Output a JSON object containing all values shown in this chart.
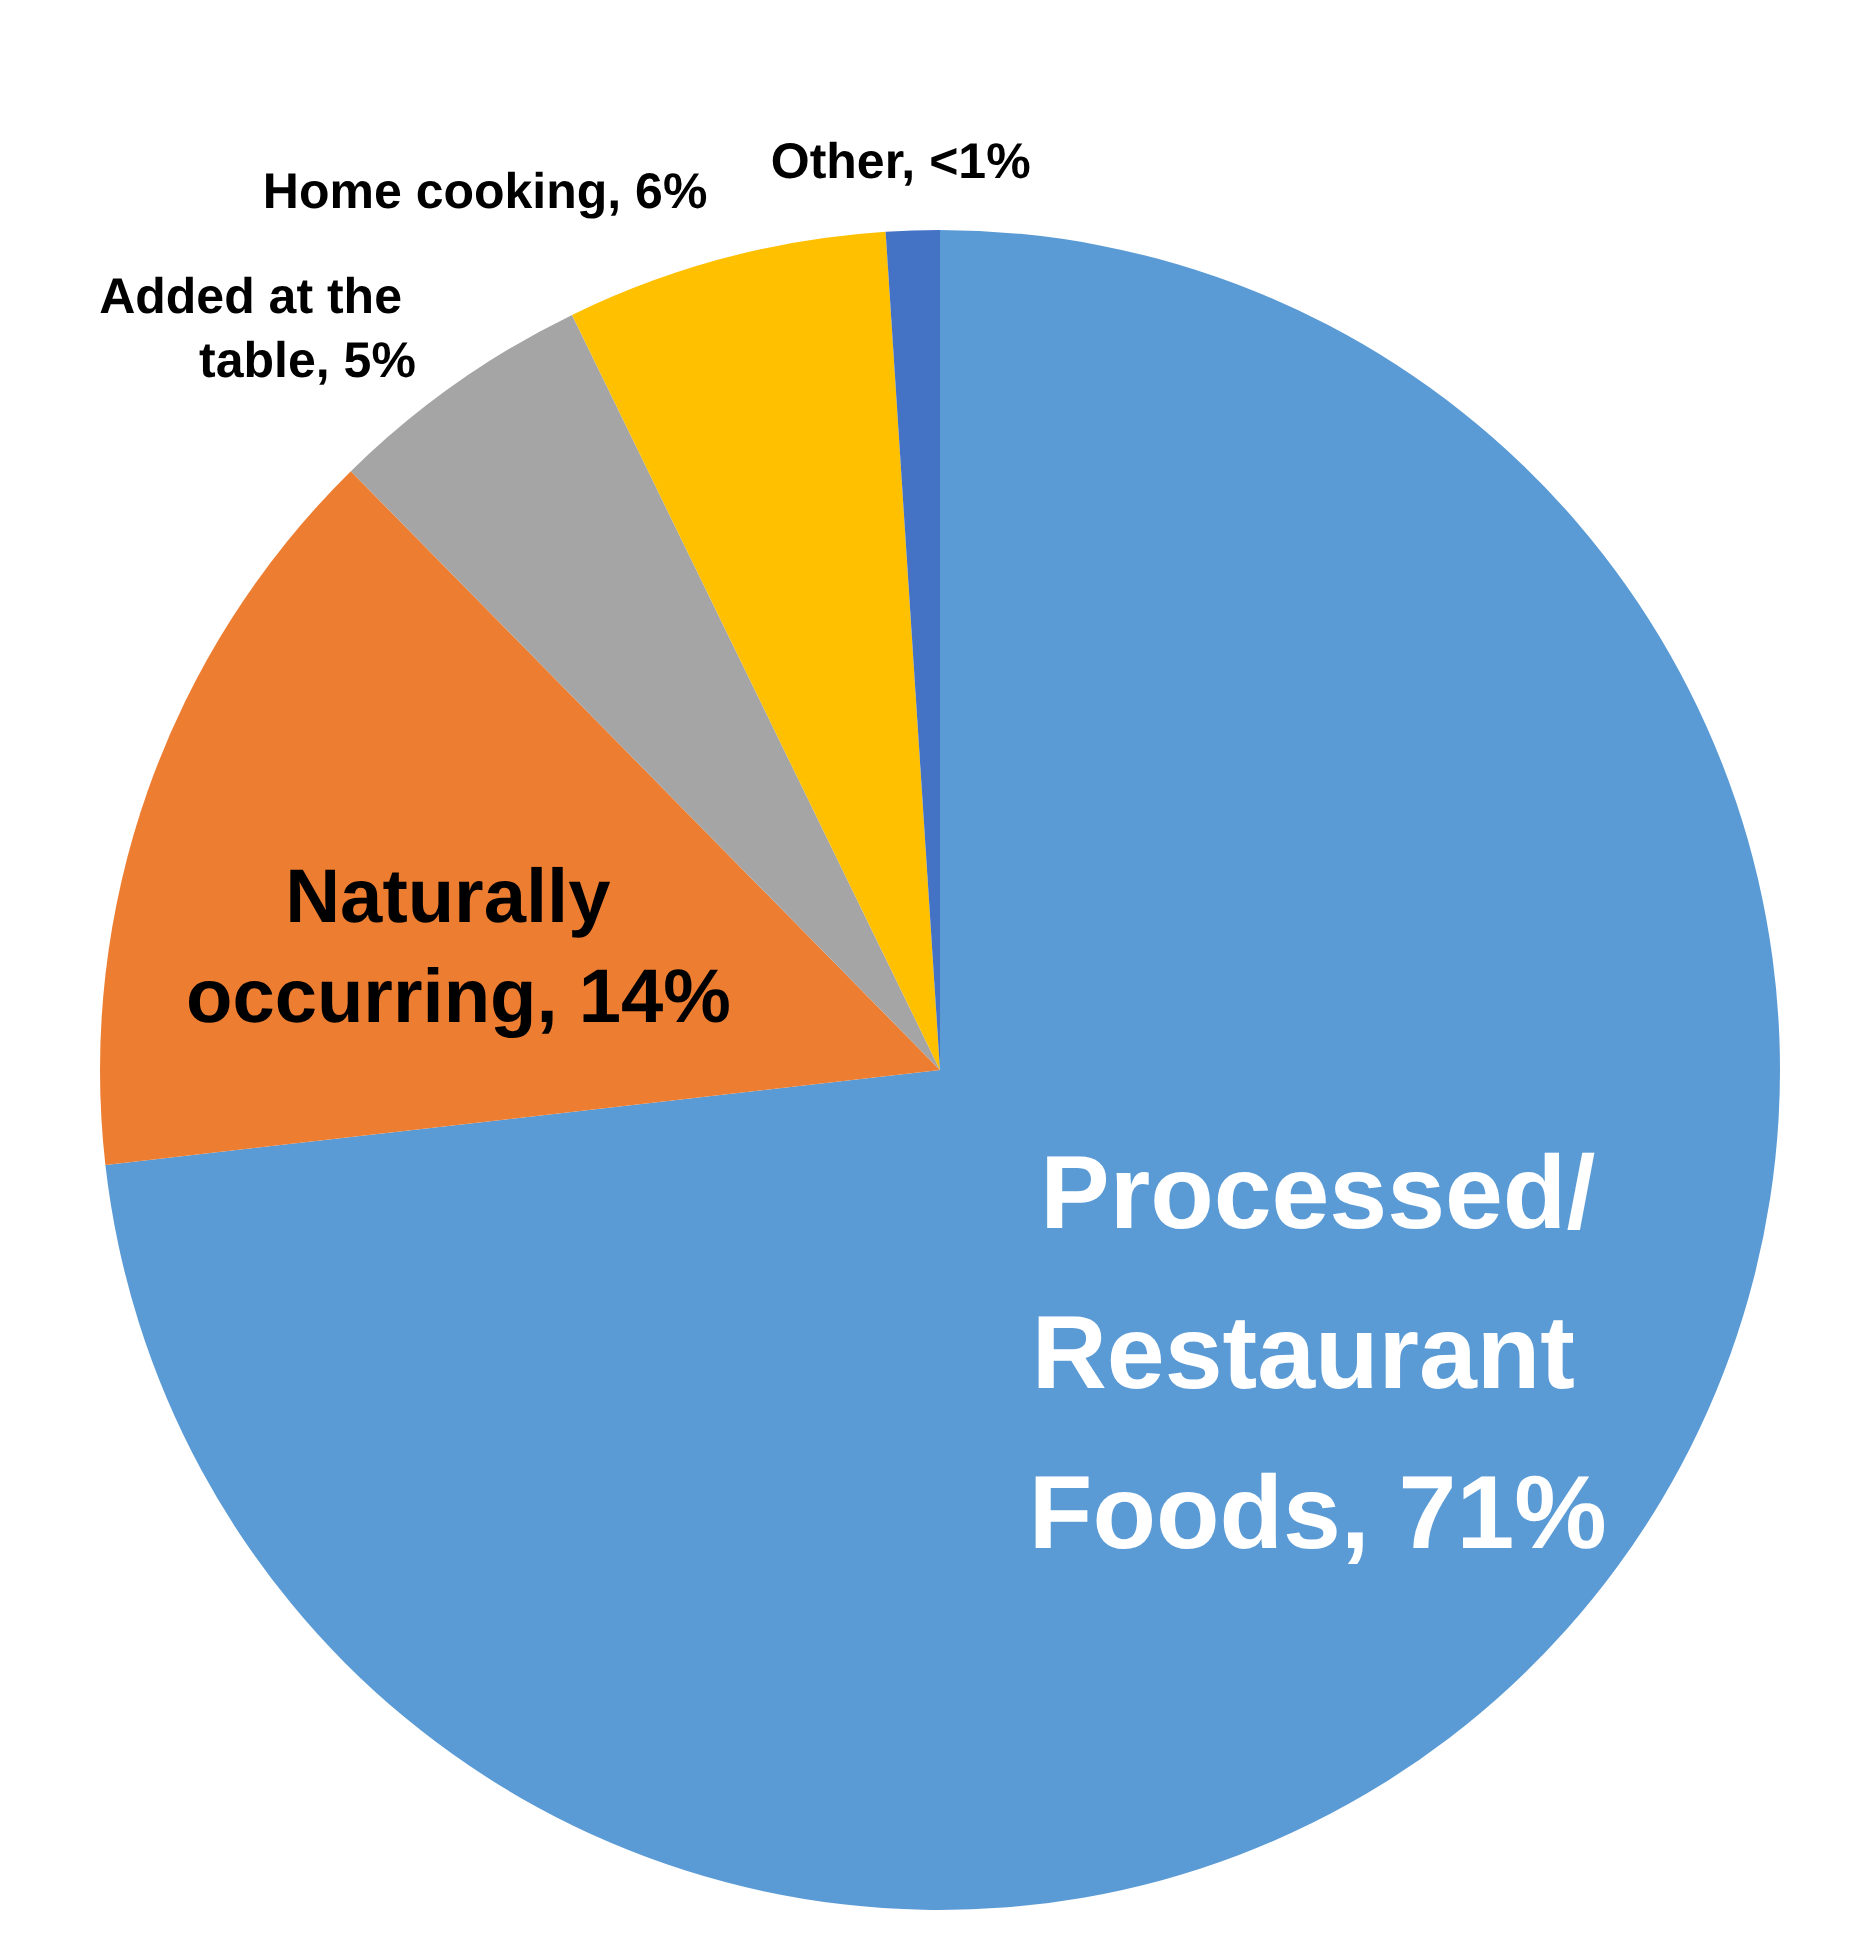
{
  "chart_data": {
    "type": "pie",
    "categories": [
      "Processed/Restaurant Foods",
      "Naturally occurring",
      "Added at the table",
      "Home cooking",
      "Other"
    ],
    "values": [
      71,
      14,
      5,
      6,
      1
    ],
    "value_labels": [
      "71%",
      "14%",
      "5%",
      "6%",
      "<1%"
    ],
    "colors": [
      "#5b9bd5",
      "#ed7d31",
      "#a5a5a5",
      "#ffc000",
      "#4472c4"
    ],
    "legend": false
  }
}
